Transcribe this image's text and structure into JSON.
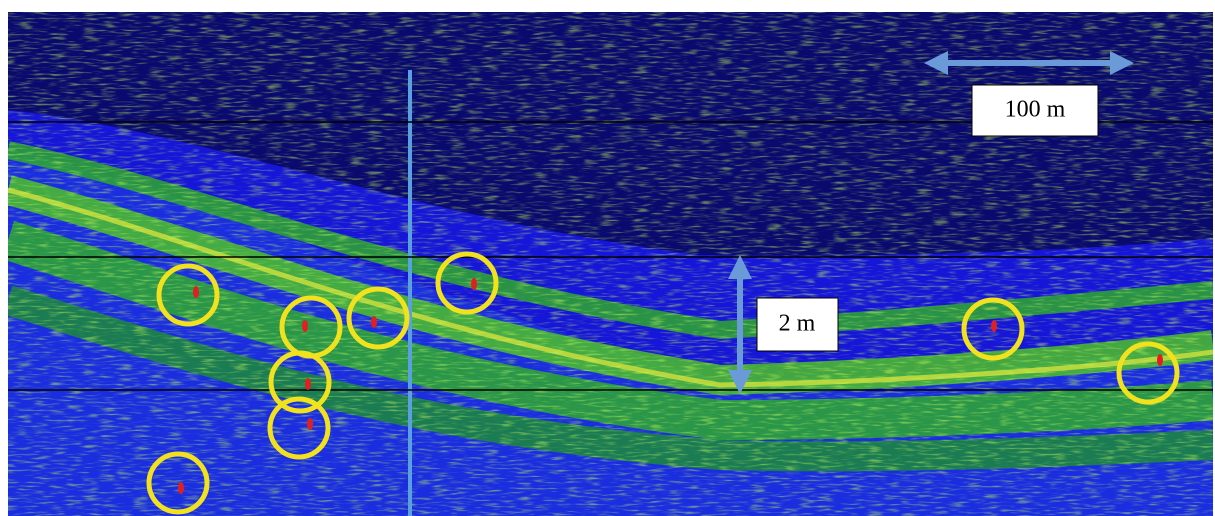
{
  "labels": {
    "horizontal_scale": "100 m",
    "vertical_scale": "2 m"
  }
}
